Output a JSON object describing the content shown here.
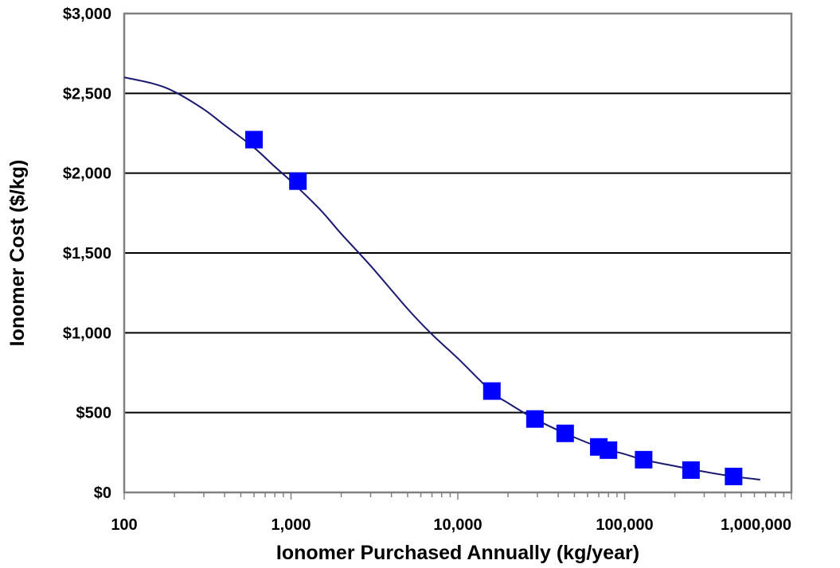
{
  "chart_data": {
    "type": "scatter",
    "xlabel": "Ionomer Purchased Annually (kg/year)",
    "ylabel": "Ionomer Cost ($/kg)",
    "x_scale": "log",
    "xlim": [
      100,
      1000000
    ],
    "ylim": [
      0,
      3000
    ],
    "x_ticks": [
      {
        "value": 100,
        "label": "100"
      },
      {
        "value": 1000,
        "label": "1,000"
      },
      {
        "value": 10000,
        "label": "10,000"
      },
      {
        "value": 100000,
        "label": "100,000"
      },
      {
        "value": 1000000,
        "label": "1,000,000"
      }
    ],
    "y_ticks": [
      {
        "value": 0,
        "label": "$0"
      },
      {
        "value": 500,
        "label": "$500"
      },
      {
        "value": 1000,
        "label": "$1,000"
      },
      {
        "value": 1500,
        "label": "$1,500"
      },
      {
        "value": 2000,
        "label": "$2,000"
      },
      {
        "value": 2500,
        "label": "$2,500"
      },
      {
        "value": 3000,
        "label": "$3,000"
      }
    ],
    "grid": "horizontal",
    "legend": "none",
    "series": [
      {
        "style": "markers",
        "marker": "square",
        "color": "#0000ff",
        "points": [
          [
            600,
            2210
          ],
          [
            1100,
            1950
          ],
          [
            16000,
            635
          ],
          [
            29000,
            460
          ],
          [
            44000,
            370
          ],
          [
            70000,
            285
          ],
          [
            80000,
            265
          ],
          [
            130000,
            205
          ],
          [
            250000,
            140
          ],
          [
            450000,
            100
          ]
        ]
      },
      {
        "style": "line",
        "color": "#191970",
        "points": [
          [
            100,
            2600
          ],
          [
            150,
            2560
          ],
          [
            200,
            2510
          ],
          [
            300,
            2400
          ],
          [
            400,
            2300
          ],
          [
            600,
            2160
          ],
          [
            800,
            2040
          ],
          [
            1000,
            1950
          ],
          [
            1500,
            1770
          ],
          [
            2000,
            1620
          ],
          [
            3000,
            1420
          ],
          [
            5000,
            1150
          ],
          [
            7000,
            990
          ],
          [
            10000,
            840
          ],
          [
            16000,
            630
          ],
          [
            20000,
            560
          ],
          [
            29000,
            460
          ],
          [
            44000,
            370
          ],
          [
            70000,
            285
          ],
          [
            100000,
            240
          ],
          [
            130000,
            205
          ],
          [
            200000,
            165
          ],
          [
            300000,
            130
          ],
          [
            450000,
            100
          ],
          [
            650000,
            80
          ]
        ]
      }
    ]
  }
}
